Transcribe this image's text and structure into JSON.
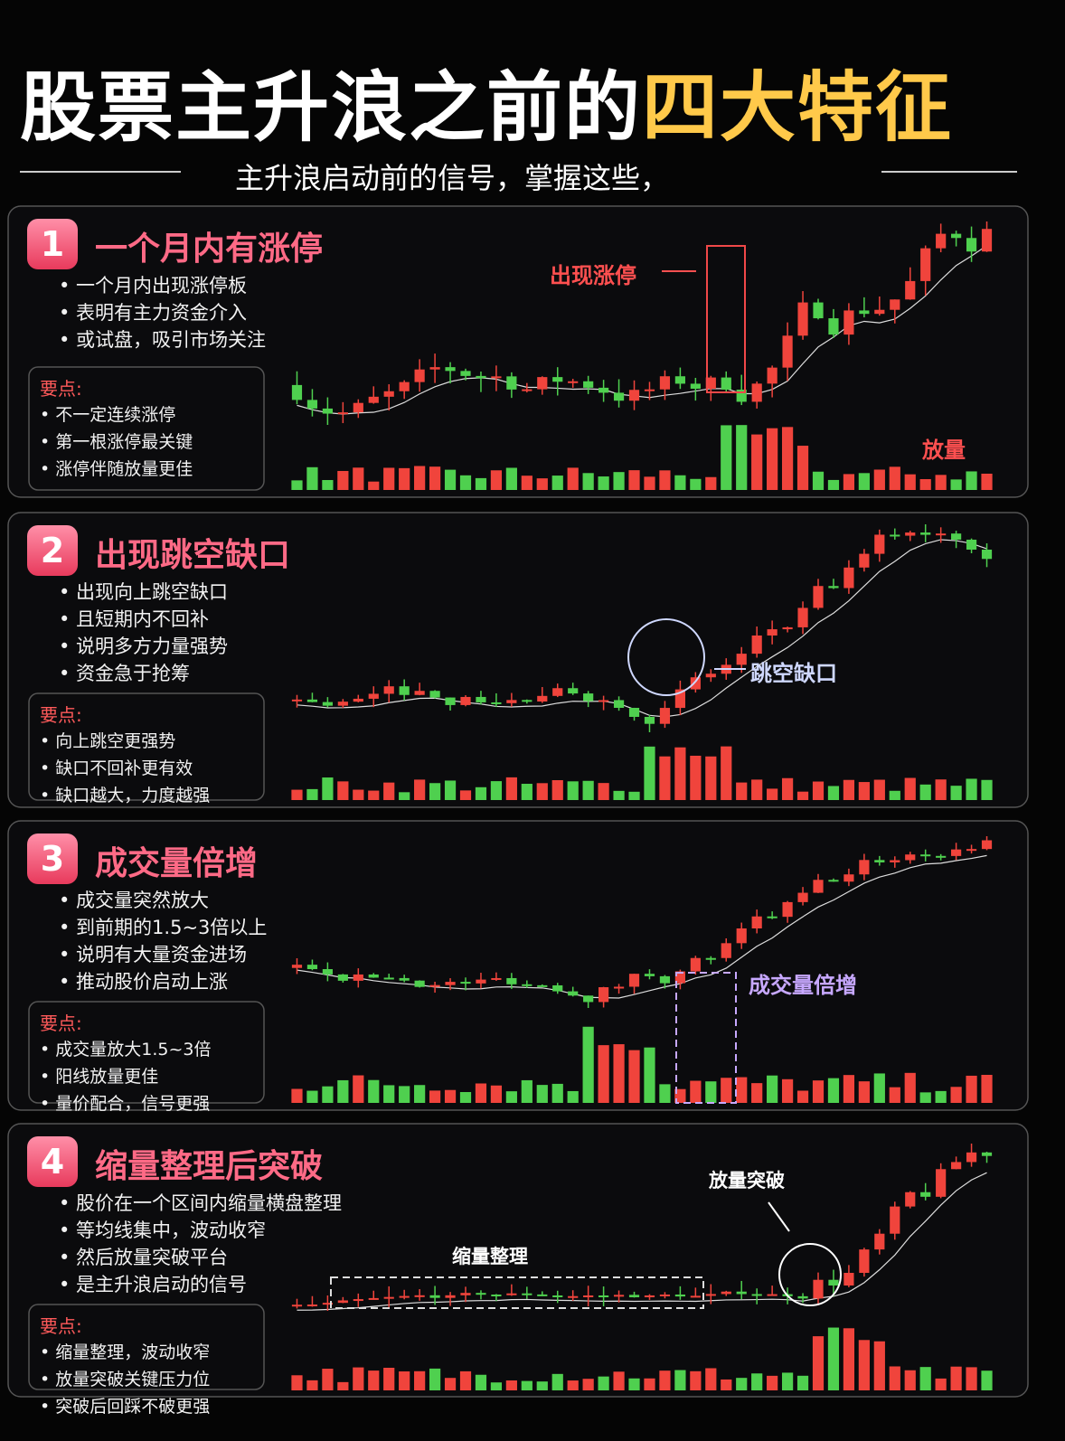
{
  "header": {
    "title_main": "股票主升浪之前的",
    "title_highlight": "四大特征",
    "subtitle": "主升浪启动前的信号，掌握这些，"
  },
  "sections": [
    {
      "number": "1",
      "title": "一个月内有涨停",
      "points": [
        "一个月内出现涨停板",
        "表明有主力资金介入",
        "或试盘，吸引市场关注"
      ],
      "key_label": "要点:",
      "key_points": [
        "不一定连续涨停",
        "第一根涨停最关键",
        "涨停伴随放量更佳"
      ],
      "annotations": [
        "出现涨停",
        "放量"
      ]
    },
    {
      "number": "2",
      "title": "出现跳空缺口",
      "points": [
        "出现向上跳空缺口",
        "且短期内不回补",
        "说明多方力量强势",
        "资金急于抢筹"
      ],
      "key_label": "要点:",
      "key_points": [
        "向上跳空更强势",
        "缺口不回补更有效",
        "缺口越大，力度越强"
      ],
      "annotations": [
        "跳空缺口"
      ]
    },
    {
      "number": "3",
      "title": "成交量倍增",
      "points": [
        "成交量突然放大",
        "到前期的1.5~3倍以上",
        "说明有大量资金进场",
        "推动股价启动上涨"
      ],
      "key_label": "要点:",
      "key_points": [
        "成交量放大1.5~3倍",
        "阳线放量更佳",
        "量价配合，信号更强"
      ],
      "annotations": [
        "成交量倍增"
      ]
    },
    {
      "number": "4",
      "title": "缩量整理后突破",
      "points": [
        "股价在一个区间内缩量横盘整理",
        "等均线集中，波动收窄",
        "然后放量突破平台",
        "是主升浪启动的信号"
      ],
      "key_label": "要点:",
      "key_points": [
        "缩量整理，波动收窄",
        "放量突破关键压力位",
        "突破后回踩不破更强"
      ],
      "annotations": [
        "放量突破",
        "缩量整理"
      ]
    }
  ]
}
